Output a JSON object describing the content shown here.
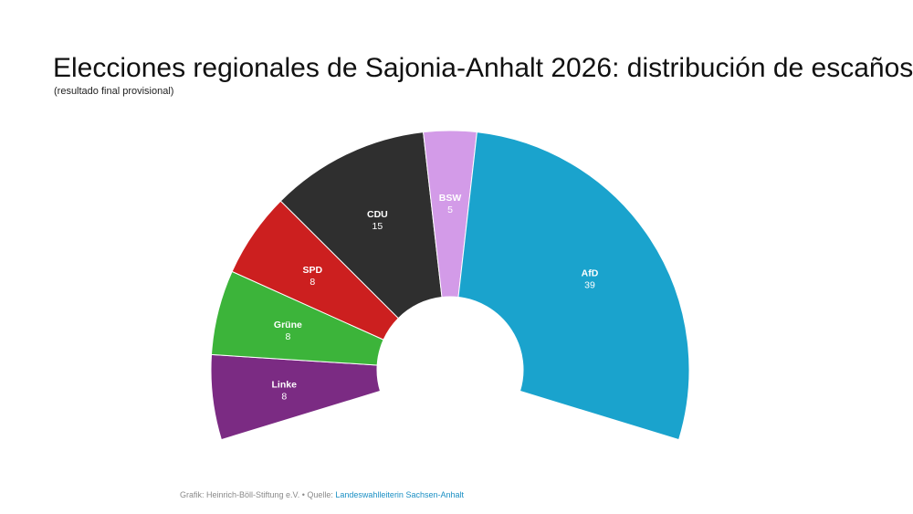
{
  "header": {
    "title": "Elecciones regionales de Sajonia-Anhalt 2026: distribución de escaños",
    "subtitle": "(resultado final provisional)"
  },
  "footer": {
    "credit": "Grafik: Heinrich-Böll-Stiftung e.V. • Quelle: ",
    "source_link": "Landeswahlleiterin Sachsen-Anhalt"
  },
  "chart_data": {
    "type": "pie",
    "style": "semicircle-donut (parliament seat distribution)",
    "title": "Elecciones regionales de Sajonia-Anhalt 2026: distribución de escaños",
    "subtitle": "(resultado final provisional)",
    "legend": "none (labels on slices)",
    "slices": [
      {
        "label": "Linke",
        "value": 8,
        "color": "#7b2b83"
      },
      {
        "label": "Grüne",
        "value": 8,
        "color": "#3cb43a"
      },
      {
        "label": "SPD",
        "value": 8,
        "color": "#cc1f1f"
      },
      {
        "label": "CDU",
        "value": 15,
        "color": "#2f2f2f"
      },
      {
        "label": "BSW",
        "value": 5,
        "color": "#d39be8"
      },
      {
        "label": "AfD",
        "value": 39,
        "color": "#1aa3cd"
      }
    ]
  }
}
